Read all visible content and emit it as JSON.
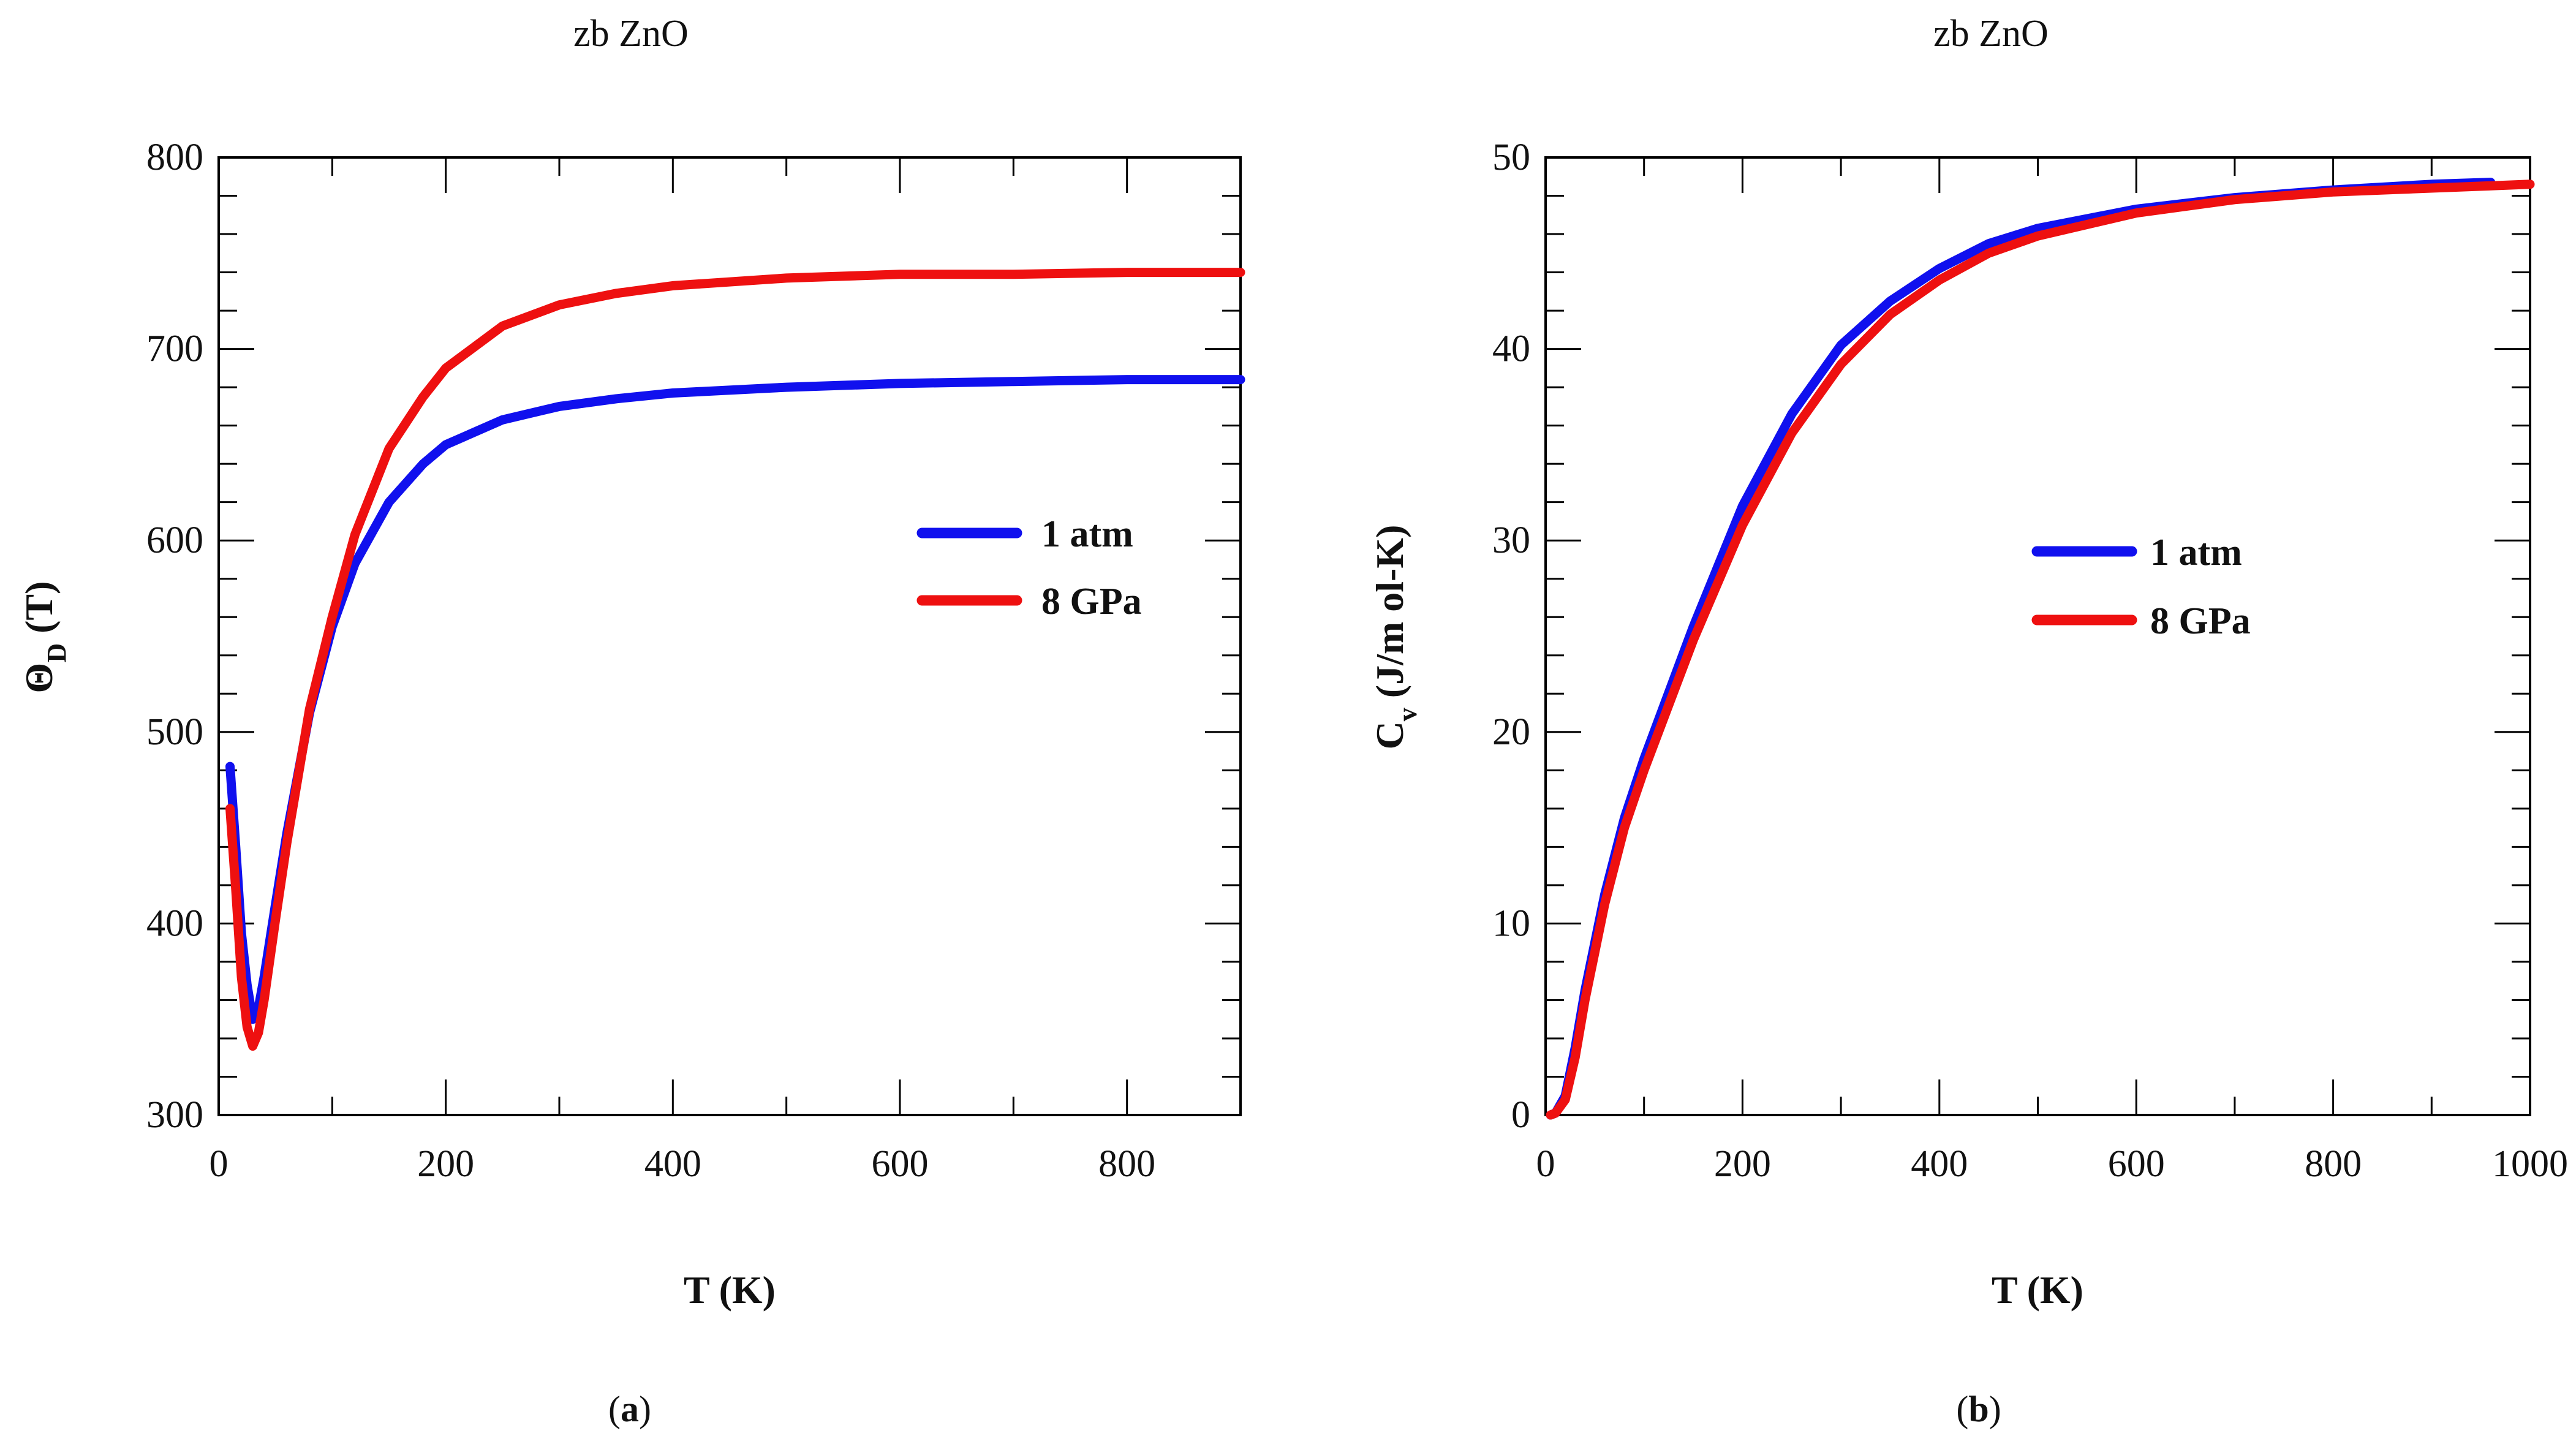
{
  "chart_data": [
    {
      "type": "line",
      "panel": "(a)",
      "caption_letter": "a",
      "title": "zb ZnO",
      "xlabel": "T (K)",
      "ylabel_main": "Θ",
      "ylabel_sub": "D",
      "ylabel_tail": " (T)",
      "xlim": [
        0,
        900
      ],
      "ylim": [
        300,
        800
      ],
      "xticks": [
        0,
        200,
        400,
        600,
        800
      ],
      "yticks": [
        300,
        400,
        500,
        600,
        700,
        800
      ],
      "legend_position": "center-right",
      "series": [
        {
          "name": "1 atm",
          "color": "#1010ee",
          "x": [
            10,
            15,
            20,
            25,
            30,
            35,
            40,
            50,
            60,
            80,
            100,
            120,
            150,
            180,
            200,
            250,
            300,
            350,
            400,
            500,
            600,
            700,
            800,
            900
          ],
          "y": [
            482,
            440,
            395,
            368,
            350,
            356,
            372,
            410,
            447,
            510,
            555,
            588,
            620,
            640,
            650,
            663,
            670,
            674,
            677,
            680,
            682,
            683,
            684,
            684
          ]
        },
        {
          "name": "8 GPa",
          "color": "#ee1010",
          "x": [
            10,
            15,
            20,
            25,
            30,
            35,
            40,
            50,
            60,
            80,
            100,
            120,
            150,
            180,
            200,
            250,
            300,
            350,
            400,
            500,
            600,
            700,
            800,
            900
          ],
          "y": [
            460,
            418,
            372,
            346,
            336,
            343,
            360,
            402,
            442,
            512,
            560,
            603,
            648,
            675,
            690,
            712,
            723,
            729,
            733,
            737,
            739,
            739,
            740,
            740
          ]
        }
      ]
    },
    {
      "type": "line",
      "panel": "(b)",
      "caption_letter": "b",
      "title": "zb ZnO",
      "xlabel": "T (K)",
      "ylabel_main": "C",
      "ylabel_sub": "v",
      "ylabel_tail": " (J/m ol-K)",
      "xlim": [
        0,
        1000
      ],
      "ylim": [
        0,
        50
      ],
      "xticks": [
        0,
        200,
        400,
        600,
        800,
        1000
      ],
      "yticks": [
        0,
        10,
        20,
        30,
        40,
        50
      ],
      "legend_position": "center",
      "series": [
        {
          "name": "1 atm",
          "color": "#1010ee",
          "x": [
            5,
            10,
            20,
            30,
            40,
            60,
            80,
            100,
            150,
            200,
            250,
            300,
            350,
            400,
            450,
            500,
            600,
            700,
            800,
            900,
            960
          ],
          "y": [
            0,
            0.1,
            1.0,
            3.5,
            6.5,
            11.5,
            15.5,
            18.6,
            25.5,
            31.8,
            36.6,
            40.2,
            42.5,
            44.2,
            45.5,
            46.3,
            47.3,
            47.9,
            48.3,
            48.6,
            48.7
          ]
        },
        {
          "name": "8 GPa",
          "color": "#ee1010",
          "x": [
            5,
            10,
            20,
            30,
            40,
            60,
            80,
            100,
            150,
            200,
            250,
            300,
            350,
            400,
            450,
            500,
            600,
            700,
            800,
            900,
            1000
          ],
          "y": [
            0,
            0.1,
            0.8,
            3.0,
            6.0,
            11.0,
            15.0,
            18.0,
            24.8,
            30.8,
            35.6,
            39.2,
            41.8,
            43.6,
            45.0,
            45.9,
            47.1,
            47.8,
            48.2,
            48.4,
            48.6
          ]
        }
      ]
    }
  ]
}
